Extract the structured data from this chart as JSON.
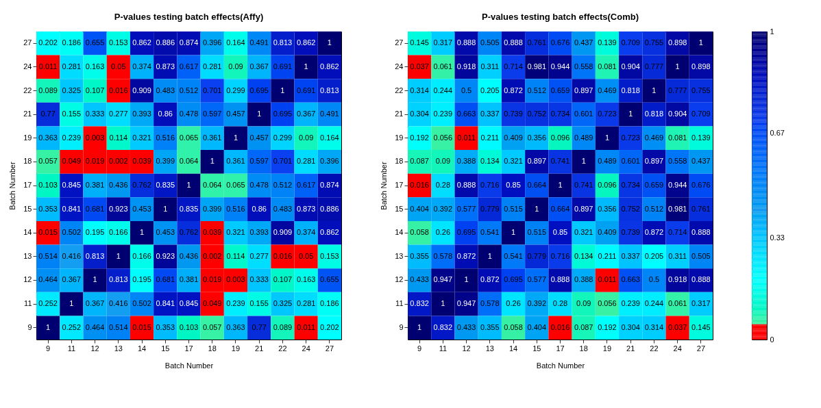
{
  "chart_data": [
    {
      "type": "heatmap",
      "title": "P-values testing batch effects(Affy)",
      "xlabel": "Batch Number",
      "ylabel": "Batch Number",
      "data_labels": true,
      "categories": [
        "9",
        "11",
        "12",
        "13",
        "14",
        "15",
        "17",
        "18",
        "19",
        "21",
        "22",
        "24",
        "27"
      ],
      "y_categories": [
        "27",
        "24",
        "22",
        "21",
        "19",
        "18",
        "17",
        "15",
        "14",
        "13",
        "12",
        "11",
        "9"
      ],
      "cells": [
        [
          0.202,
          0.186,
          0.655,
          0.153,
          0.862,
          0.886,
          0.874,
          0.396,
          0.164,
          0.491,
          0.813,
          0.862,
          1
        ],
        [
          0.011,
          0.281,
          0.163,
          0.05,
          0.374,
          0.873,
          0.617,
          0.281,
          0.09,
          0.367,
          0.691,
          1,
          0.862
        ],
        [
          0.089,
          0.325,
          0.107,
          0.016,
          0.909,
          0.483,
          0.512,
          0.701,
          0.299,
          0.695,
          1,
          0.691,
          0.813
        ],
        [
          0.77,
          0.155,
          0.333,
          0.277,
          0.393,
          0.86,
          0.478,
          0.597,
          0.457,
          1,
          0.695,
          0.367,
          0.491
        ],
        [
          0.363,
          0.239,
          0.003,
          0.114,
          0.321,
          0.516,
          0.065,
          0.361,
          1,
          0.457,
          0.299,
          0.09,
          0.164
        ],
        [
          0.057,
          0.049,
          0.019,
          0.002,
          0.039,
          0.399,
          0.064,
          1,
          0.361,
          0.597,
          0.701,
          0.281,
          0.396
        ],
        [
          0.103,
          0.845,
          0.381,
          0.436,
          0.762,
          0.835,
          1,
          0.064,
          0.065,
          0.478,
          0.512,
          0.617,
          0.874
        ],
        [
          0.353,
          0.841,
          0.681,
          0.923,
          0.453,
          1,
          0.835,
          0.399,
          0.516,
          0.86,
          0.483,
          0.873,
          0.886
        ],
        [
          0.015,
          0.502,
          0.195,
          0.166,
          1,
          0.453,
          0.762,
          0.039,
          0.321,
          0.393,
          0.909,
          0.374,
          0.862
        ],
        [
          0.514,
          0.416,
          0.813,
          1,
          0.166,
          0.923,
          0.436,
          0.002,
          0.114,
          0.277,
          0.016,
          0.05,
          0.153
        ],
        [
          0.464,
          0.367,
          1,
          0.813,
          0.195,
          0.681,
          0.381,
          0.019,
          0.003,
          0.333,
          0.107,
          0.163,
          0.655
        ],
        [
          0.252,
          1,
          0.367,
          0.416,
          0.502,
          0.841,
          0.845,
          0.049,
          0.239,
          0.155,
          0.325,
          0.281,
          0.186
        ],
        [
          1,
          0.252,
          0.464,
          0.514,
          0.015,
          0.353,
          0.103,
          0.057,
          0.363,
          0.77,
          0.089,
          0.011,
          0.202
        ]
      ]
    },
    {
      "type": "heatmap",
      "title": "P-values testing batch effects(Comb)",
      "xlabel": "Batch Number",
      "ylabel": "Batch Number",
      "data_labels": true,
      "clim": [
        0,
        1
      ],
      "cticks": [
        0,
        {
          "value": 0.33,
          "label": "0.33"
        },
        {
          "value": 0.67,
          "label": "0.67"
        },
        1
      ],
      "categories": [
        "9",
        "11",
        "12",
        "13",
        "14",
        "15",
        "17",
        "18",
        "19",
        "21",
        "22",
        "24",
        "27"
      ],
      "y_categories": [
        "27",
        "24",
        "22",
        "21",
        "19",
        "18",
        "17",
        "15",
        "14",
        "13",
        "12",
        "11",
        "9"
      ],
      "cells": [
        [
          0.145,
          0.317,
          0.888,
          0.505,
          0.888,
          0.761,
          0.676,
          0.437,
          0.139,
          0.709,
          0.755,
          0.898,
          1
        ],
        [
          0.037,
          0.061,
          0.918,
          0.311,
          0.714,
          0.981,
          0.944,
          0.558,
          0.081,
          0.904,
          0.777,
          1,
          0.898
        ],
        [
          0.314,
          0.244,
          0.5,
          0.205,
          0.872,
          0.512,
          0.659,
          0.897,
          0.469,
          0.818,
          1,
          0.777,
          0.755
        ],
        [
          0.304,
          0.239,
          0.663,
          0.337,
          0.739,
          0.752,
          0.734,
          0.601,
          0.723,
          1,
          0.818,
          0.904,
          0.709
        ],
        [
          0.192,
          0.056,
          0.011,
          0.211,
          0.409,
          0.356,
          0.096,
          0.489,
          1,
          0.723,
          0.469,
          0.081,
          0.139
        ],
        [
          0.087,
          0.09,
          0.388,
          0.134,
          0.321,
          0.897,
          0.741,
          1,
          0.489,
          0.601,
          0.897,
          0.558,
          0.437
        ],
        [
          0.016,
          0.28,
          0.888,
          0.716,
          0.85,
          0.664,
          1,
          0.741,
          0.096,
          0.734,
          0.659,
          0.944,
          0.676
        ],
        [
          0.404,
          0.392,
          0.577,
          0.779,
          0.515,
          1,
          0.664,
          0.897,
          0.356,
          0.752,
          0.512,
          0.981,
          0.761
        ],
        [
          0.058,
          0.26,
          0.695,
          0.541,
          1,
          0.515,
          0.85,
          0.321,
          0.409,
          0.739,
          0.872,
          0.714,
          0.888
        ],
        [
          0.355,
          0.578,
          0.872,
          1,
          0.541,
          0.779,
          0.716,
          0.134,
          0.211,
          0.337,
          0.205,
          0.311,
          0.505
        ],
        [
          0.433,
          0.947,
          1,
          0.872,
          0.695,
          0.577,
          0.888,
          0.388,
          0.011,
          0.663,
          0.5,
          0.918,
          0.888
        ],
        [
          0.832,
          1,
          0.947,
          0.578,
          0.26,
          0.392,
          0.28,
          0.09,
          0.056,
          0.239,
          0.244,
          0.061,
          0.317
        ],
        [
          1,
          0.832,
          0.433,
          0.355,
          0.058,
          0.404,
          0.016,
          0.087,
          0.192,
          0.304,
          0.314,
          0.037,
          0.145
        ]
      ]
    }
  ]
}
